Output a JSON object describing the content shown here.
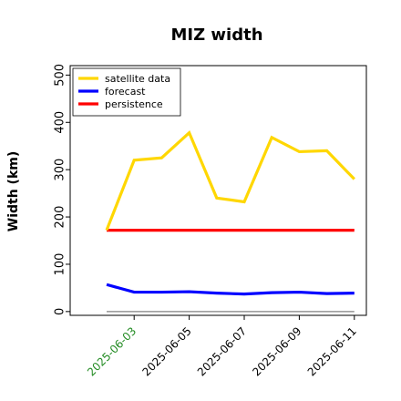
{
  "chart_data": {
    "type": "line",
    "title": "MIZ width",
    "ylabel": "Width (km)",
    "xlabel": "",
    "ylim": [
      -8,
      520
    ],
    "y_ticks": [
      0,
      100,
      200,
      300,
      400,
      500
    ],
    "x_tick_labels": [
      "2025-06-03",
      "2025-06-05",
      "2025-06-07",
      "2025-06-09",
      "2025-06-11"
    ],
    "x_tick_label_colors": [
      "#228b22",
      "#000000",
      "#000000",
      "#000000",
      "#000000"
    ],
    "x": [
      "2025-06-02",
      "2025-06-03",
      "2025-06-04",
      "2025-06-05",
      "2025-06-06",
      "2025-06-07",
      "2025-06-08",
      "2025-06-09",
      "2025-06-10",
      "2025-06-11"
    ],
    "legend_position": "top-left",
    "grid": false,
    "series": [
      {
        "name": "satellite data",
        "color": "#ffd700",
        "values": [
          172,
          320,
          325,
          378,
          240,
          232,
          368,
          338,
          340,
          280
        ]
      },
      {
        "name": "forecast",
        "color": "#0000ff",
        "values": [
          57,
          41,
          41,
          42,
          39,
          37,
          40,
          41,
          38,
          39
        ]
      },
      {
        "name": "persistence",
        "color": "#ff0000",
        "values": [
          172,
          172,
          172,
          172,
          172,
          172,
          172,
          172,
          172,
          172
        ]
      }
    ],
    "zero_line": {
      "value": 0,
      "color": "#808080"
    }
  }
}
